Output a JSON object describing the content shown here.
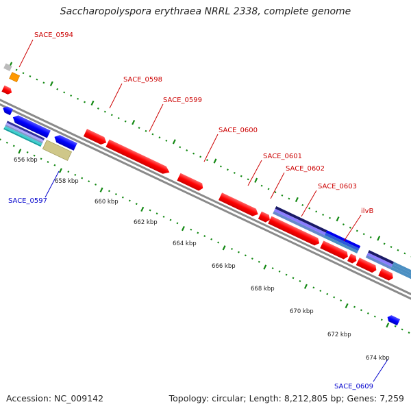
{
  "title": "Saccharopolyspora erythraea NRRL 2338, complete genome",
  "footer": {
    "accession": "Accession: NC_009142",
    "summary": "Topology: circular; Length: 8,212,805 bp; Genes: 7,259"
  },
  "gene_labels": {
    "sace_0594": "SACE_0594",
    "sace_0597": "SACE_0597",
    "sace_0598": "SACE_0598",
    "sace_0599": "SACE_0599",
    "sace_0600": "SACE_0600",
    "sace_0601": "SACE_0601",
    "sace_0602": "SACE_0602",
    "sace_0603": "SACE_0603",
    "ilvb": "ilvB",
    "sace_0609": "SACE_0609"
  },
  "scale_ticks": [
    "656 kbp",
    "658 kbp",
    "660 kbp",
    "662 kbp",
    "664 kbp",
    "666 kbp",
    "668 kbp",
    "670 kbp",
    "672 kbp",
    "674 kbp"
  ],
  "colors": {
    "forward_gene": "#ff0000",
    "reverse_gene": "#0000ff",
    "label_forward": "#cc0000",
    "label_reverse": "#0000cc",
    "ticks": "#118811",
    "backbone": "#8a8a8a"
  }
}
